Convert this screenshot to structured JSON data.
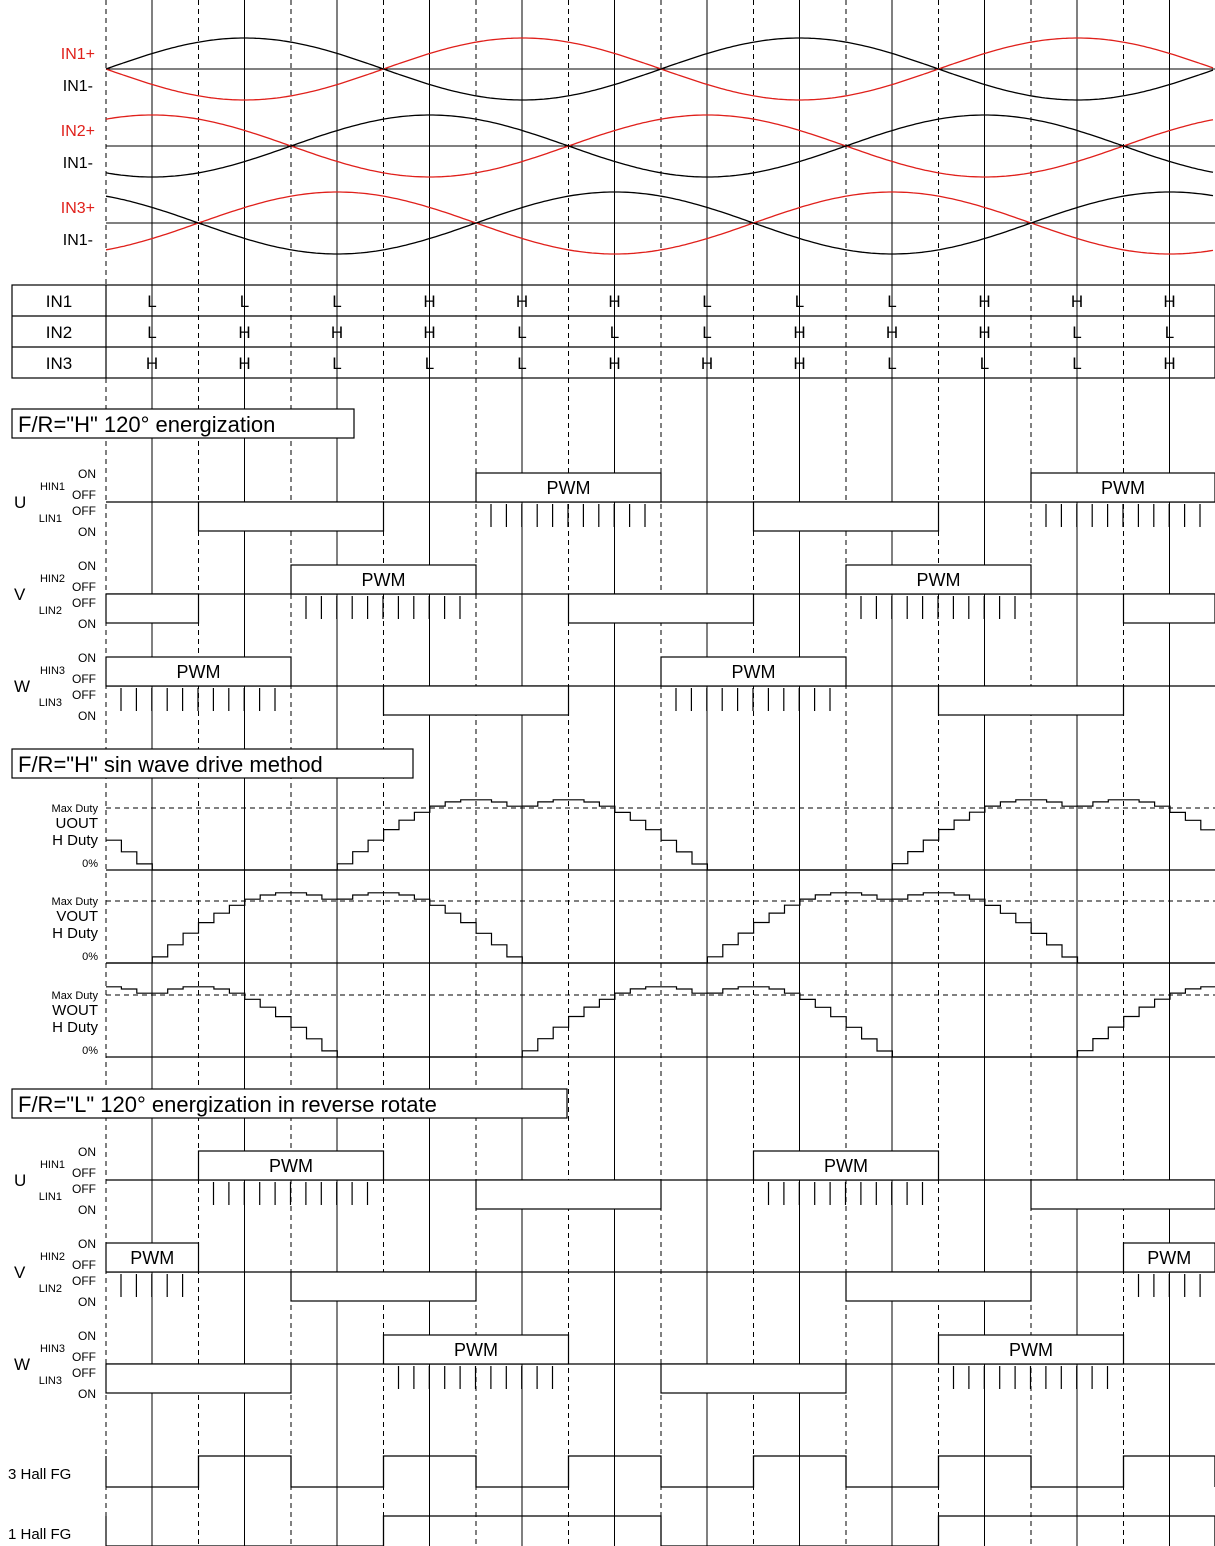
{
  "colors": {
    "line": "#000000",
    "accent": "#e0201b"
  },
  "hall": {
    "pairs": [
      {
        "plus": "IN1+",
        "minus": "IN1-"
      },
      {
        "plus": "IN2+",
        "minus": "IN1-"
      },
      {
        "plus": "IN3+",
        "minus": "IN1-"
      }
    ]
  },
  "table": {
    "rows": [
      {
        "label": "IN1",
        "cells": [
          "L",
          "L",
          "L",
          "H",
          "H",
          "H",
          "L",
          "L",
          "L",
          "H",
          "H",
          "H"
        ]
      },
      {
        "label": "IN2",
        "cells": [
          "L",
          "H",
          "H",
          "H",
          "L",
          "L",
          "L",
          "H",
          "H",
          "H",
          "L",
          "L"
        ]
      },
      {
        "label": "IN3",
        "cells": [
          "H",
          "H",
          "L",
          "L",
          "L",
          "H",
          "H",
          "H",
          "L",
          "L",
          "L",
          "H"
        ]
      }
    ]
  },
  "sections": {
    "fwd120": "F/R=\"H\" 120° energization",
    "sine": "F/R=\"H\"  sin wave drive method",
    "rev120": "F/R=\"L\" 120° energization in reverse rotate"
  },
  "labels": {
    "on": "ON",
    "off": "OFF",
    "pwm": "PWM"
  },
  "fwd_phases": [
    {
      "phase": "U",
      "hin": "HIN1",
      "lin": "LIN1"
    },
    {
      "phase": "V",
      "hin": "HIN2",
      "lin": "LIN2"
    },
    {
      "phase": "W",
      "hin": "HIN3",
      "lin": "LIN3"
    }
  ],
  "rev_phases": [
    {
      "phase": "U",
      "hin": "HIN1",
      "lin": "LIN1"
    },
    {
      "phase": "V",
      "hin": "HIN2",
      "lin": "LIN2"
    },
    {
      "phase": "W",
      "hin": "HIN3",
      "lin": "LIN3"
    }
  ],
  "sine_phases": [
    {
      "max": "Max Duty",
      "name": "UOUT",
      "duty": "H Duty",
      "zero": "0%"
    },
    {
      "max": "Max Duty",
      "name": "VOUT",
      "duty": "H Duty",
      "zero": "0%"
    },
    {
      "max": "Max Duty",
      "name": "WOUT",
      "duty": "H Duty",
      "zero": "0%"
    }
  ],
  "fg": {
    "three": "3 Hall FG",
    "one": "1 Hall FG"
  }
}
